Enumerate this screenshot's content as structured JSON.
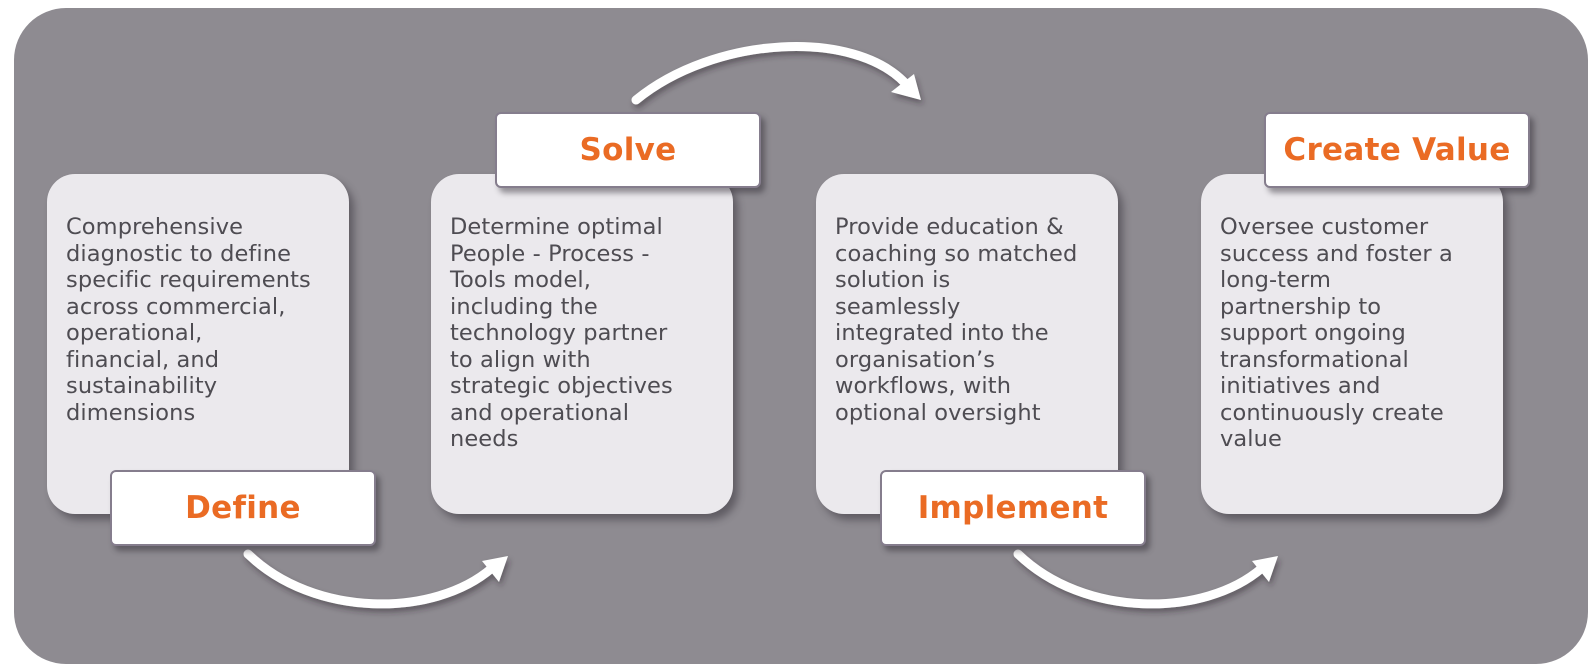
{
  "stages": [
    {
      "label": "Define",
      "text": "Comprehensive\ndiagnostic to define\nspecific requirements\nacross commercial,\noperational,\nfinancial, and\nsustainability\ndimensions"
    },
    {
      "label": "Solve",
      "text": "Determine optimal\nPeople - Process -\nTools model,\nincluding the\ntechnology partner\nto align with\nstrategic objectives\nand operational\nneeds"
    },
    {
      "label": "Implement",
      "text": "Provide education &\ncoaching so matched\nsolution is\nseamlessly\nintegrated into the\norganisation’s\nworkflows, with\noptional oversight"
    },
    {
      "label": "Create Value",
      "text": "Oversee customer\nsuccess and foster a\nlong-term\npartnership to\nsupport ongoing\ntransformational\ninitiatives and\ncontinuously create\nvalue"
    }
  ],
  "colors": {
    "background": "#8e8b91",
    "card": "#ebe9ed",
    "label_text": "#ea6b24",
    "body_text": "#4e4c52",
    "arrow": "#ffffff"
  }
}
